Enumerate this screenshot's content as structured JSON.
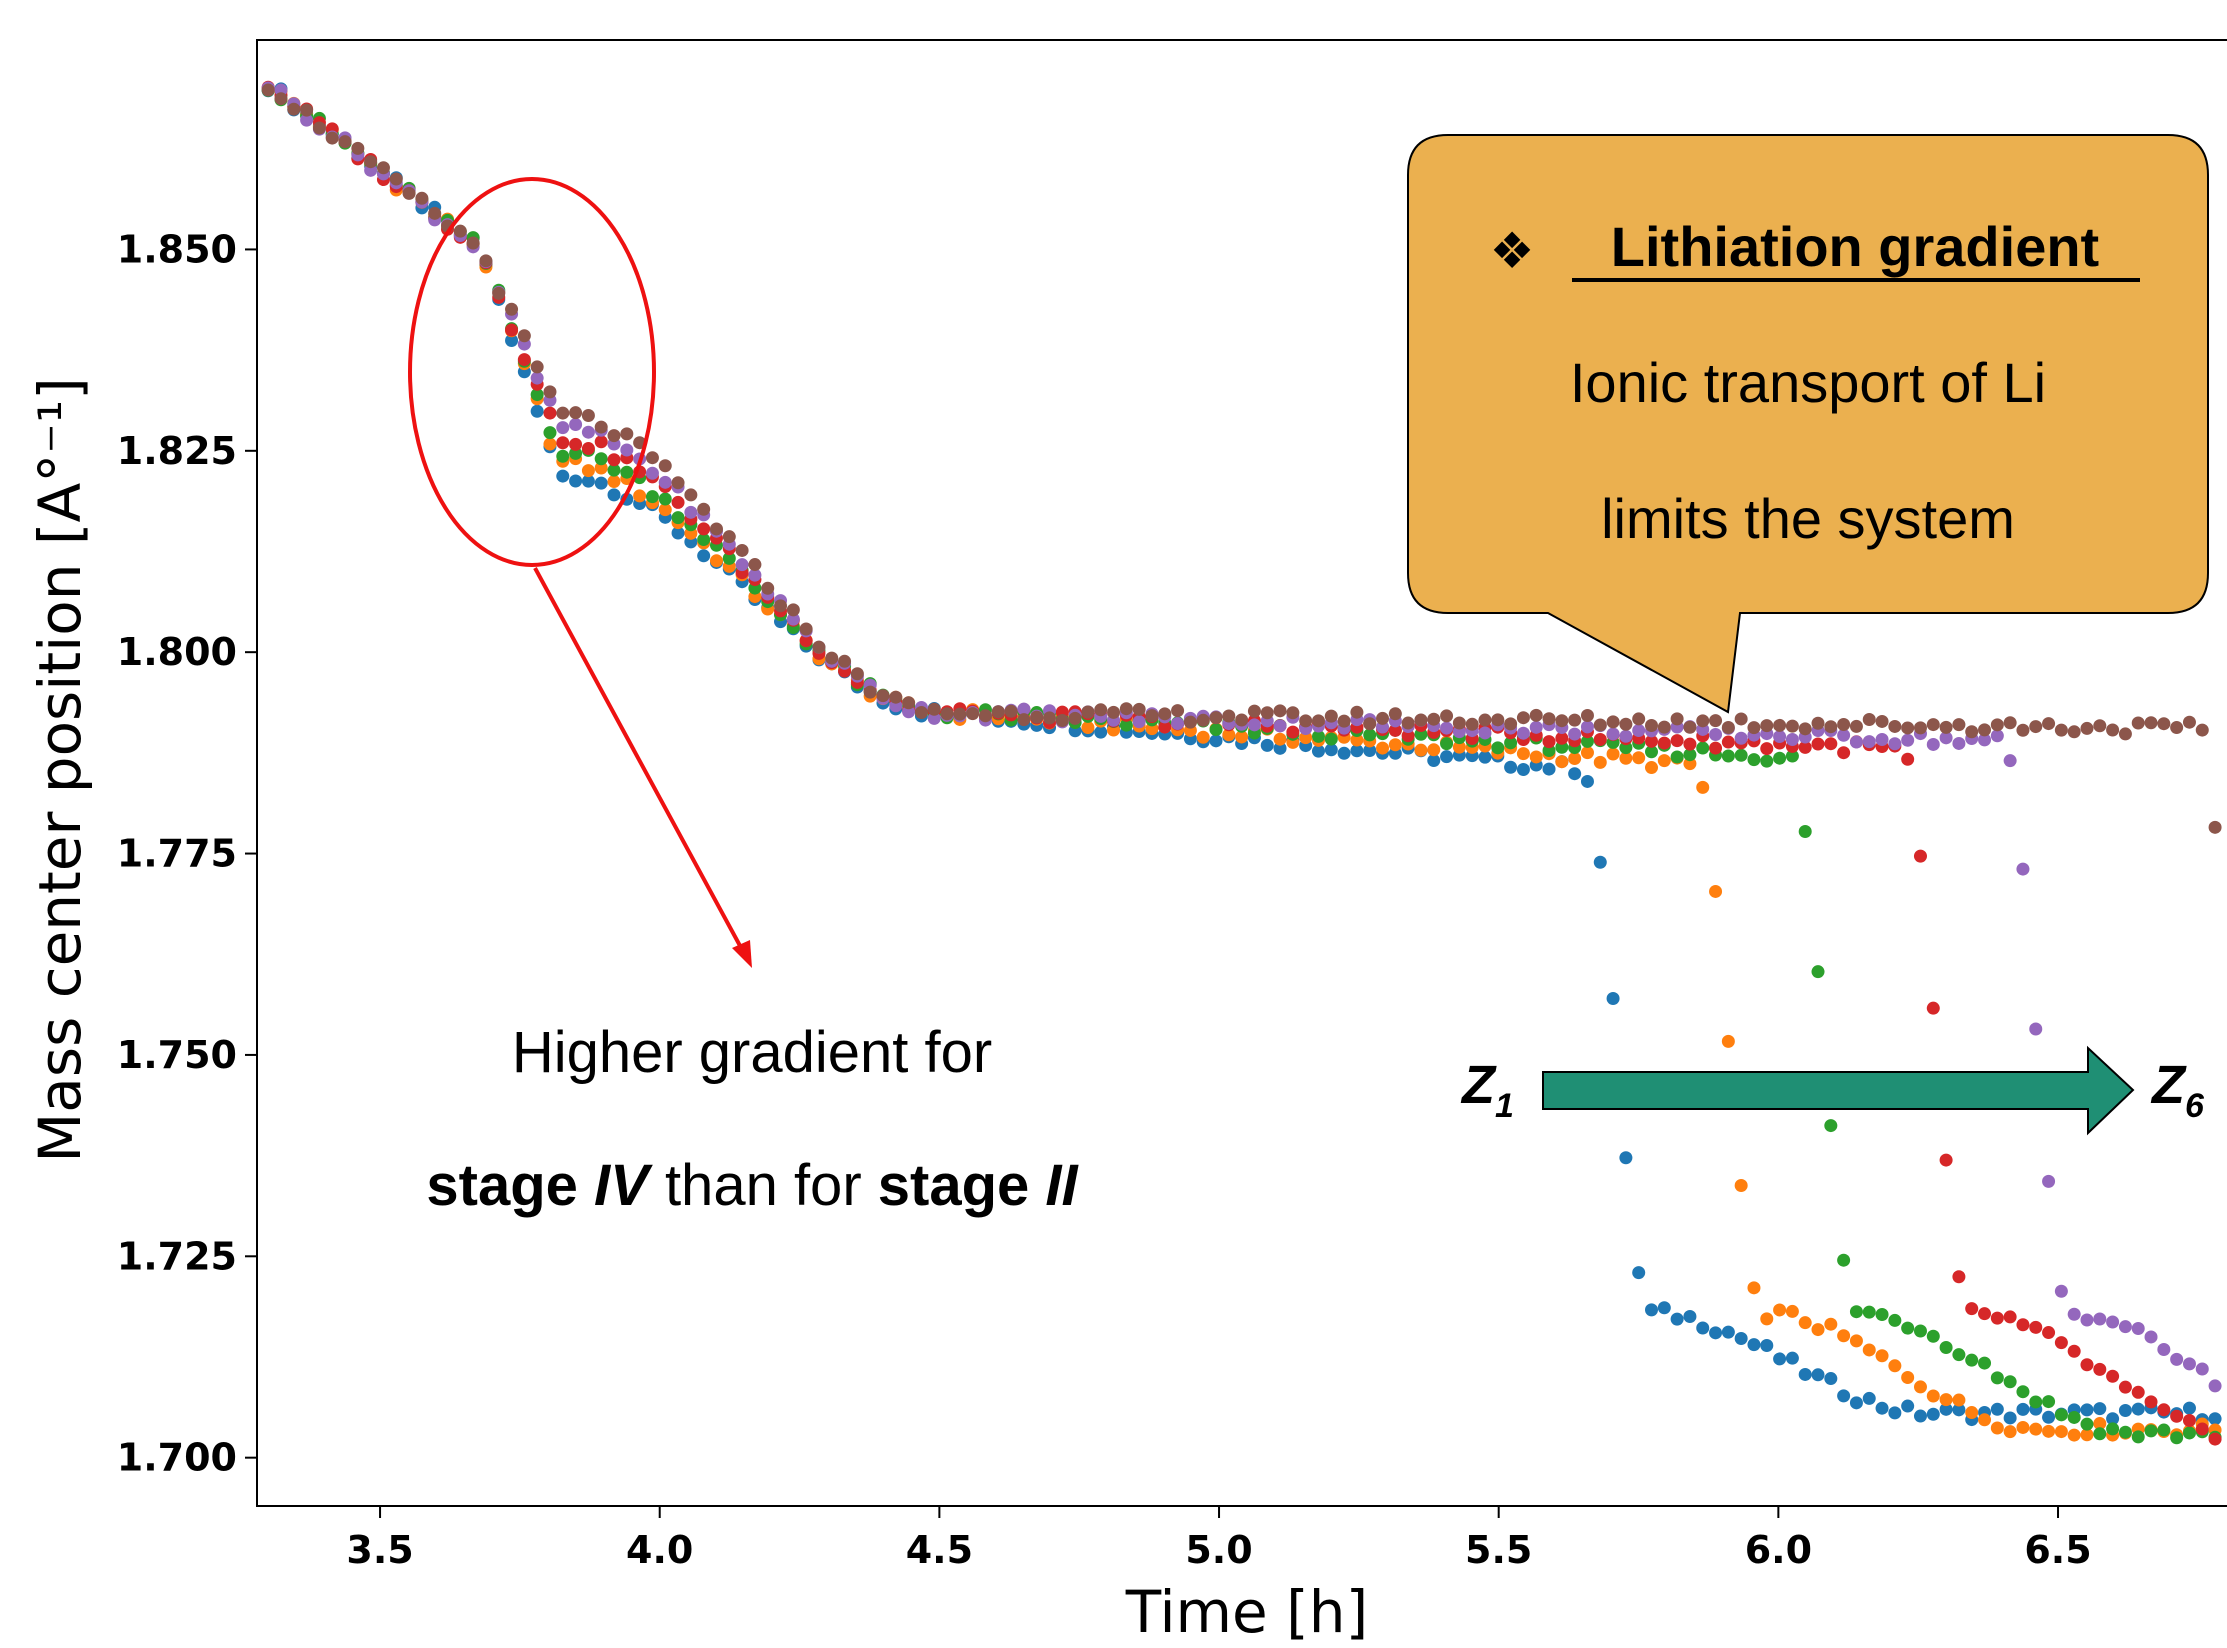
{
  "chart_data": {
    "type": "scatter",
    "xlabel": "Time [h]",
    "ylabel": "Mass center position [A°⁻¹]",
    "xlim": [
      3.28,
      6.82
    ],
    "ylim": [
      1.694,
      1.876
    ],
    "x_ticks": [
      "3.5",
      "4.0",
      "4.5",
      "5.0",
      "5.5",
      "6.0",
      "6.5"
    ],
    "y_ticks": [
      "1.700",
      "1.725",
      "1.750",
      "1.775",
      "1.800",
      "1.825",
      "1.850"
    ],
    "grid": false,
    "series": [
      {
        "color": "#1f77b4",
        "drop_time": 5.65,
        "mid": 1.822,
        "plateau": 1.7855,
        "low": 1.7055
      },
      {
        "color": "#ff7f0e",
        "drop_time": 5.85,
        "mid": 1.8235,
        "plateau": 1.786,
        "low": 1.7035
      },
      {
        "color": "#2ca02c",
        "drop_time": 6.02,
        "mid": 1.825,
        "plateau": 1.787,
        "low": 1.703
      },
      {
        "color": "#d62728",
        "drop_time": 6.22,
        "mid": 1.8265,
        "plateau": 1.788,
        "low": 1.702
      },
      {
        "color": "#9467bd",
        "drop_time": 6.4,
        "mid": 1.828,
        "plateau": 1.789,
        "low": 1.7015
      },
      {
        "color": "#8c564b",
        "drop_time": 6.75,
        "mid": 1.8295,
        "plateau": 1.7905,
        "low": 1.7005
      }
    ]
  },
  "annotations": {
    "left_note_line1": "Higher gradient for",
    "left_note_line2_parts": [
      {
        "text": "stage ",
        "bold": true,
        "italic": false
      },
      {
        "text": "IV",
        "bold": true,
        "italic": true
      },
      {
        "text": " than for ",
        "bold": false,
        "italic": false
      },
      {
        "text": "stage ",
        "bold": true,
        "italic": false
      },
      {
        "text": "II",
        "bold": true,
        "italic": true
      }
    ],
    "callout_bullet": "❖",
    "callout_title": "Lithiation gradient",
    "callout_line1": "Ionic transport of Li",
    "callout_line2": "limits the system",
    "arrow_start_label": "Z",
    "arrow_start_sub": "1",
    "arrow_end_label": "Z",
    "arrow_end_sub": "6"
  },
  "colors": {
    "callout_fill": "#ebb04f",
    "arrow_fill": "#1f8f74",
    "highlight": "#ee1111"
  }
}
